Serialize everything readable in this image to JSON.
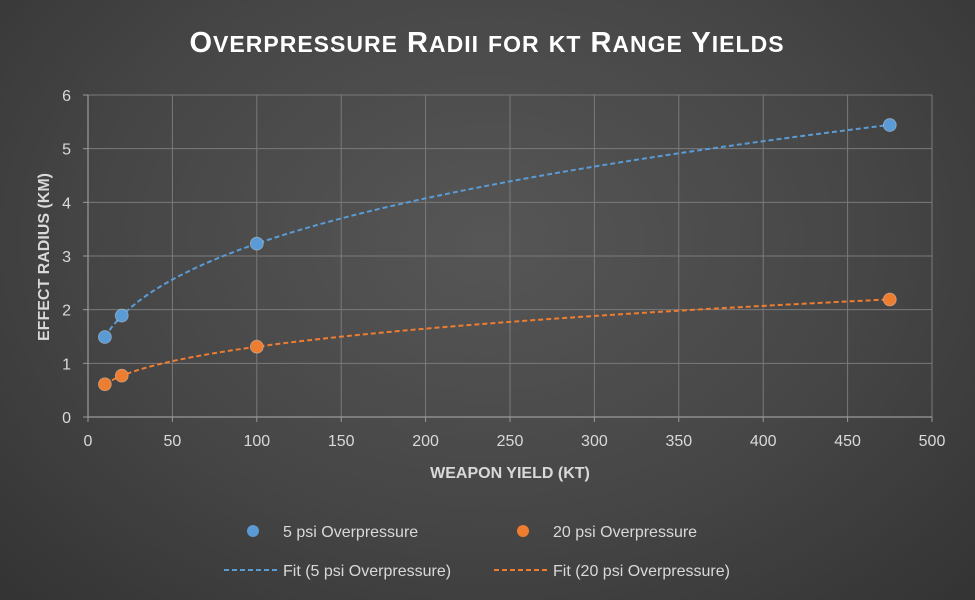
{
  "chart_data": {
    "type": "scatter",
    "title": "Overpressure Radii for kt Range Yields",
    "xlabel": "WEAPON YIELD (KT)",
    "ylabel": "EFFECT RADIUS (KM)",
    "xlim": [
      0,
      500
    ],
    "ylim": [
      0,
      6
    ],
    "xticks": [
      0,
      50,
      100,
      150,
      200,
      250,
      300,
      350,
      400,
      450,
      500
    ],
    "yticks": [
      0,
      1,
      2,
      3,
      4,
      5,
      6
    ],
    "grid": true,
    "legend_position": "bottom",
    "series": [
      {
        "name": "5 psi Overpressure",
        "color": "#5b9bd5",
        "x": [
          10,
          20,
          100,
          475
        ],
        "y": [
          1.49,
          1.89,
          3.23,
          5.44
        ]
      },
      {
        "name": "20 psi Overpressure",
        "color": "#ed7d31",
        "x": [
          10,
          20,
          100,
          475
        ],
        "y": [
          0.61,
          0.77,
          1.31,
          2.19
        ]
      }
    ],
    "fits": [
      {
        "name": "Fit (5 psi Overpressure)",
        "color": "#5b9bd5",
        "of_series": "5 psi Overpressure",
        "x_range": [
          10,
          475
        ]
      },
      {
        "name": "Fit (20 psi Overpressure)",
        "color": "#ed7d31",
        "of_series": "20 psi Overpressure",
        "x_range": [
          10,
          475
        ]
      }
    ]
  }
}
